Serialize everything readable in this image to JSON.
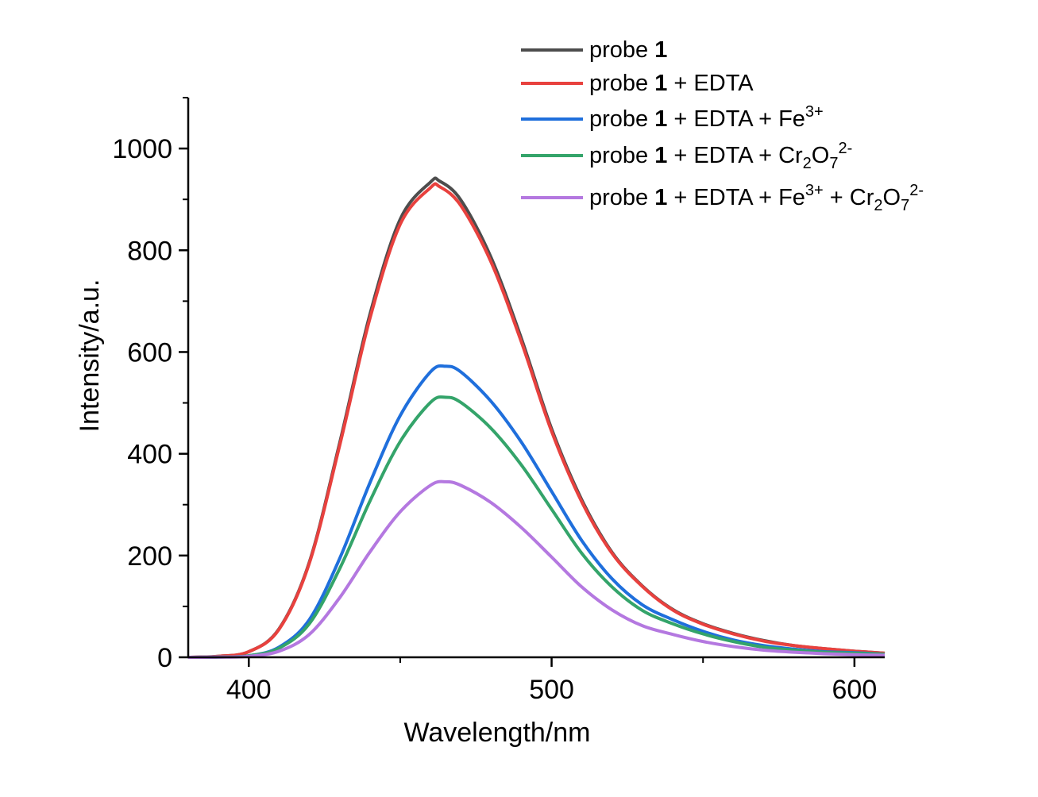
{
  "chart_data": {
    "type": "line",
    "title": "",
    "xlabel": "Wavelength/nm",
    "ylabel": "Intensity/a.u.",
    "xlim": [
      380,
      610
    ],
    "ylim": [
      0,
      1100
    ],
    "xticks": [
      400,
      500,
      600
    ],
    "xminor": [
      450,
      550
    ],
    "yticks": [
      0,
      200,
      400,
      600,
      800,
      1000
    ],
    "yminor": [
      100,
      300,
      500,
      700,
      900,
      1100
    ],
    "grid": false,
    "legend_position": "top-right",
    "series": [
      {
        "name": "probe 1",
        "color": "#4d4d4d",
        "label": [
          {
            "t": "probe "
          },
          {
            "t": "1",
            "s": "b"
          }
        ],
        "x": [
          380,
          390,
          400,
          410,
          420,
          430,
          440,
          450,
          460,
          463,
          470,
          480,
          490,
          500,
          510,
          520,
          530,
          540,
          550,
          560,
          570,
          580,
          590,
          600,
          610
        ],
        "values": [
          0,
          2,
          11,
          56,
          187,
          421,
          674,
          861,
          934,
          936,
          899,
          786,
          627,
          449,
          309,
          206,
          140,
          94,
          66,
          47,
          33,
          23,
          17,
          12,
          8
        ]
      },
      {
        "name": "probe 1 + EDTA",
        "color": "#e8413e",
        "label": [
          {
            "t": "probe "
          },
          {
            "t": "1",
            "s": "b"
          },
          {
            "t": " + EDTA"
          }
        ],
        "x": [
          380,
          390,
          400,
          410,
          420,
          430,
          440,
          450,
          460,
          463,
          470,
          480,
          490,
          500,
          510,
          520,
          530,
          540,
          550,
          560,
          570,
          580,
          590,
          600,
          610
        ],
        "values": [
          0,
          2,
          11,
          55,
          185,
          416,
          666,
          851,
          923,
          925,
          888,
          777,
          620,
          444,
          305,
          204,
          139,
          93,
          65,
          46,
          32,
          23,
          17,
          12,
          8
        ]
      },
      {
        "name": "probe 1 + EDTA + Fe3+",
        "color": "#1f6fdc",
        "label": [
          {
            "t": "probe "
          },
          {
            "t": "1",
            "s": "b"
          },
          {
            "t": " + EDTA + Fe"
          },
          {
            "t": "3+",
            "s": "sup"
          }
        ],
        "x": [
          380,
          390,
          400,
          410,
          420,
          430,
          440,
          450,
          460,
          465,
          470,
          480,
          490,
          500,
          510,
          520,
          530,
          540,
          550,
          560,
          570,
          580,
          590,
          600,
          610
        ],
        "values": [
          0,
          0.6,
          3,
          20,
          74,
          194,
          343,
          475,
          561,
          572,
          561,
          503,
          423,
          326,
          229,
          154,
          103,
          74,
          51,
          34,
          23,
          16,
          11,
          9,
          6
        ]
      },
      {
        "name": "probe 1 + EDTA + Cr2O7 2-",
        "color": "#34a46a",
        "label": [
          {
            "t": "probe "
          },
          {
            "t": "1",
            "s": "b"
          },
          {
            "t": " + EDTA + Cr"
          },
          {
            "t": "2",
            "s": "sub"
          },
          {
            "t": "O"
          },
          {
            "t": "7",
            "s": "sub"
          },
          {
            "t": "2-",
            "s": "sup"
          }
        ],
        "x": [
          380,
          390,
          400,
          410,
          420,
          430,
          440,
          450,
          460,
          465,
          470,
          480,
          490,
          500,
          510,
          520,
          530,
          540,
          550,
          560,
          570,
          580,
          590,
          600,
          610
        ],
        "values": [
          0,
          0.5,
          3,
          18,
          66,
          174,
          307,
          424,
          501,
          511,
          501,
          450,
          378,
          291,
          204,
          138,
          92,
          66,
          46,
          31,
          20,
          14,
          10,
          8,
          6
        ]
      },
      {
        "name": "probe 1 + EDTA + Fe3+ + Cr2O7 2-",
        "color": "#b478e0",
        "label": [
          {
            "t": "probe "
          },
          {
            "t": "1",
            "s": "b"
          },
          {
            "t": " + EDTA + Fe"
          },
          {
            "t": "3+",
            "s": "sup"
          },
          {
            "t": " + Cr"
          },
          {
            "t": "2",
            "s": "sub"
          },
          {
            "t": "O"
          },
          {
            "t": "7",
            "s": "sub"
          },
          {
            "t": "2-",
            "s": "sup"
          }
        ],
        "x": [
          380,
          390,
          400,
          410,
          420,
          430,
          440,
          450,
          460,
          465,
          470,
          480,
          490,
          500,
          510,
          520,
          530,
          540,
          550,
          560,
          570,
          580,
          590,
          600,
          610
        ],
        "values": [
          0,
          0.3,
          2,
          12,
          45,
          117,
          207,
          286,
          338,
          345,
          338,
          304,
          255,
          197,
          138,
          93,
          62,
          45,
          31,
          21,
          14,
          10,
          7,
          5,
          4
        ]
      }
    ]
  }
}
